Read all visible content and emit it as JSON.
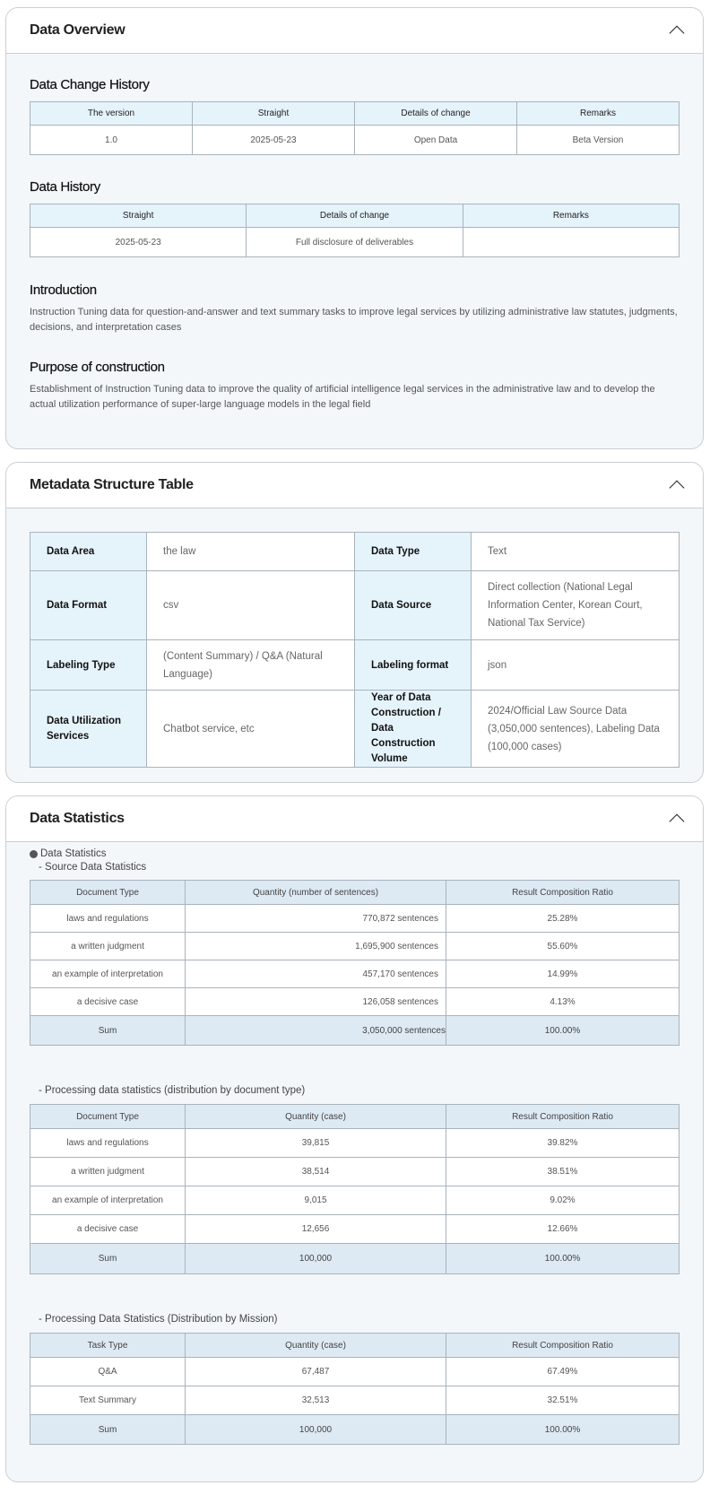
{
  "overview": {
    "title": "Data Overview",
    "change_history": {
      "title": "Data Change History",
      "headers": [
        "The version",
        "Straight",
        "Details of change",
        "Remarks"
      ],
      "rows": [
        [
          "1.0",
          "2025-05-23",
          "Open Data",
          "Beta Version"
        ]
      ]
    },
    "history": {
      "title": "Data History",
      "headers": [
        "Straight",
        "Details of change",
        "Remarks"
      ],
      "rows": [
        [
          "2025-05-23",
          "Full disclosure of deliverables",
          ""
        ]
      ]
    },
    "introduction": {
      "title": "Introduction",
      "text": "Instruction Tuning data for question-and-answer and text summary tasks to improve legal services by utilizing administrative law statutes, judgments, decisions, and interpretation cases"
    },
    "purpose": {
      "title": "Purpose of construction",
      "text": "Establishment of Instruction Tuning data to improve the quality of artificial intelligence legal services in the administrative law and to develop the actual utilization performance of super-large language models in the legal field"
    }
  },
  "metadata": {
    "title": "Metadata Structure Table",
    "rows": [
      [
        {
          "k": "Data Area",
          "v": "the law"
        },
        {
          "k": "Data Type",
          "v": "Text"
        }
      ],
      [
        {
          "k": "Data Format",
          "v": "csv"
        },
        {
          "k": "Data Source",
          "v": "Direct collection (National Legal Information Center, Korean Court, National Tax Service)"
        }
      ],
      [
        {
          "k": "Labeling Type",
          "v": "(Content Summary) / Q&A (Natural Language)"
        },
        {
          "k": "Labeling format",
          "v": "json"
        }
      ],
      [
        {
          "k": "Data Utilization Services",
          "v": "Chatbot service, etc"
        },
        {
          "k": "Year of Data Construction / Data Construction Volume",
          "v": "2024/Official Law Source Data (3,050,000 sentences), Labeling Data (100,000 cases)"
        }
      ]
    ]
  },
  "statistics": {
    "title": "Data Statistics",
    "bullet": "Data Statistics",
    "source": {
      "subtitle": "- Source Data Statistics",
      "headers": [
        "Document Type",
        "Quantity (number of sentences)",
        "Result Composition Ratio"
      ],
      "rows": [
        [
          "laws and regulations",
          "770,872 sentences",
          "25.28%"
        ],
        [
          "a written judgment",
          "1,695,900 sentences",
          "55.60%"
        ],
        [
          "an example of interpretation",
          "457,170 sentences",
          "14.99%"
        ],
        [
          "a decisive case",
          "126,058 sentences",
          "4.13%"
        ]
      ],
      "sum": [
        "Sum",
        "3,050,000 sentences",
        "100.00%"
      ]
    },
    "by_doc": {
      "subtitle": "- Processing data statistics (distribution by document type)",
      "headers": [
        "Document Type",
        "Quantity (case)",
        "Result Composition Ratio"
      ],
      "rows": [
        [
          "laws and regulations",
          "39,815",
          "39.82%"
        ],
        [
          "a written judgment",
          "38,514",
          "38.51%"
        ],
        [
          "an example of interpretation",
          "9,015",
          "9.02%"
        ],
        [
          "a decisive case",
          "12,656",
          "12.66%"
        ]
      ],
      "sum": [
        "Sum",
        "100,000",
        "100.00%"
      ]
    },
    "by_mission": {
      "subtitle": "- Processing Data Statistics (Distribution by Mission)",
      "headers": [
        "Task Type",
        "Quantity (case)",
        "Result Composition Ratio"
      ],
      "rows": [
        [
          "Q&A",
          "67,487",
          "67.49%"
        ],
        [
          "Text Summary",
          "32,513",
          "32.51%"
        ]
      ],
      "sum": [
        "Sum",
        "100,000",
        "100.00%"
      ]
    }
  }
}
